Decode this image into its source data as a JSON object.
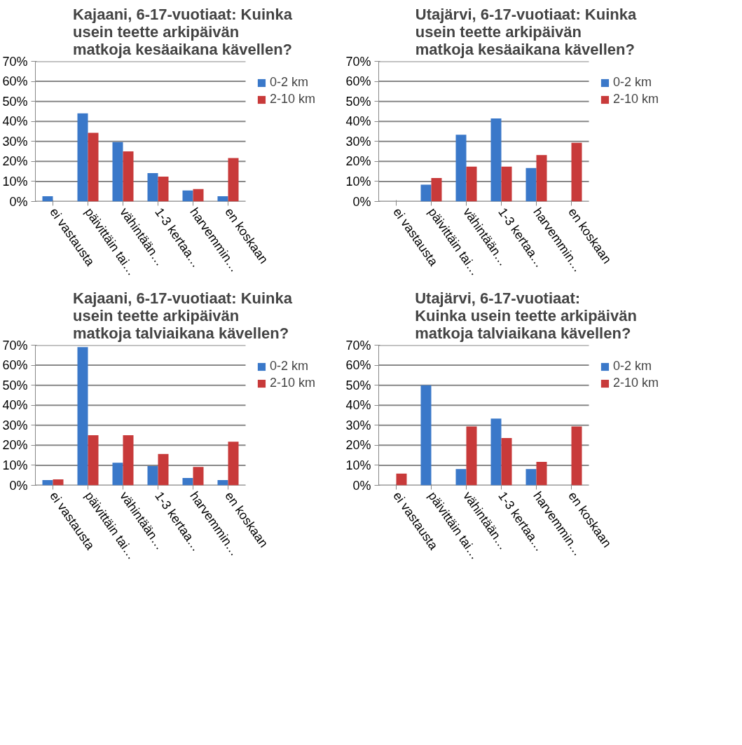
{
  "chart_data": [
    {
      "type": "bar",
      "title": "Kajaani, 6-17-vuotiaat: Kuinka\nusein teette arkipäivän\nmatkoja kesäaikana kävellen?",
      "categories": [
        "ei vastausta",
        "päivittäin tai…",
        "vähintään…",
        "1-3 kertaa…",
        "harvemmin…",
        "en koskaan"
      ],
      "series": [
        {
          "name": "0-2 km",
          "color": "#3a78c9",
          "values": [
            2.6,
            44,
            29.7,
            14.2,
            5.5,
            2.6
          ]
        },
        {
          "name": "2-10 km",
          "color": "#c83a3a",
          "values": [
            0,
            34.3,
            25,
            12.4,
            6.2,
            21.7
          ]
        }
      ],
      "ylim": [
        0,
        70
      ],
      "yticks": [
        {
          "value": 0,
          "label": "0%"
        },
        {
          "value": 10,
          "label": "10%"
        },
        {
          "value": 20,
          "label": "20%"
        },
        {
          "value": 30,
          "label": "30%"
        },
        {
          "value": 40,
          "label": "40%"
        },
        {
          "value": 50,
          "label": "50%"
        },
        {
          "value": 60,
          "label": "60%"
        },
        {
          "value": 70,
          "label": "70%"
        }
      ],
      "grid": "y",
      "legend": "right"
    },
    {
      "type": "bar",
      "title": "Utajärvi, 6-17-vuotiaat: Kuinka\nusein teette arkipäivän\nmatkoja kesäaikana kävellen?",
      "categories": [
        "ei vastausta",
        "päivittäin tai…",
        "vähintään…",
        "1-3 kertaa…",
        "harvemmin…",
        "en koskaan"
      ],
      "series": [
        {
          "name": "0-2 km",
          "color": "#3a78c9",
          "values": [
            0,
            8.4,
            33.3,
            41.5,
            16.7,
            0
          ]
        },
        {
          "name": "2-10 km",
          "color": "#c83a3a",
          "values": [
            0,
            11.7,
            17.4,
            17.4,
            23.2,
            29.3
          ]
        }
      ],
      "ylim": [
        0,
        70
      ],
      "yticks": [
        {
          "value": 0,
          "label": "0%"
        },
        {
          "value": 10,
          "label": "10%"
        },
        {
          "value": 20,
          "label": "20%"
        },
        {
          "value": 30,
          "label": "30%"
        },
        {
          "value": 40,
          "label": "40%"
        },
        {
          "value": 50,
          "label": "50%"
        },
        {
          "value": 60,
          "label": "60%"
        },
        {
          "value": 70,
          "label": "70%"
        }
      ],
      "grid": "y",
      "legend": "right"
    },
    {
      "type": "bar",
      "title": "Kajaani, 6-17-vuotiaat: Kuinka\nusein teette arkipäivän\nmatkoja talviaikana kävellen?",
      "categories": [
        "ei vastausta",
        "päivittäin tai…",
        "vähintään…",
        "1-3 kertaa…",
        "harvemmin…",
        "en koskaan"
      ],
      "series": [
        {
          "name": "0-2 km",
          "color": "#3a78c9",
          "values": [
            2.6,
            69,
            11.3,
            9.6,
            3.7,
            2.6
          ]
        },
        {
          "name": "2-10 km",
          "color": "#c83a3a",
          "values": [
            3,
            25,
            25,
            15.7,
            9.2,
            21.8
          ]
        }
      ],
      "ylim": [
        0,
        70
      ],
      "yticks": [
        {
          "value": 0,
          "label": "0%"
        },
        {
          "value": 10,
          "label": "10%"
        },
        {
          "value": 20,
          "label": "20%"
        },
        {
          "value": 30,
          "label": "30%"
        },
        {
          "value": 40,
          "label": "40%"
        },
        {
          "value": 50,
          "label": "50%"
        },
        {
          "value": 60,
          "label": "60%"
        },
        {
          "value": 70,
          "label": "70%"
        }
      ],
      "grid": "y",
      "legend": "right"
    },
    {
      "type": "bar",
      "title": "Utajärvi, 6-17-vuotiaat:\nKuinka usein teette arkipäivän\nmatkoja talviaikana kävellen?",
      "categories": [
        "ei vastausta",
        "päivittäin tai…",
        "vähintään…",
        "1-3 kertaa…",
        "harvemmin…",
        "en koskaan"
      ],
      "series": [
        {
          "name": "0-2 km",
          "color": "#3a78c9",
          "values": [
            0,
            50,
            8.1,
            33.3,
            8.1,
            0
          ]
        },
        {
          "name": "2-10 km",
          "color": "#c83a3a",
          "values": [
            5.9,
            0,
            29.4,
            23.6,
            11.7,
            29.4
          ]
        }
      ],
      "ylim": [
        0,
        70
      ],
      "yticks": [
        {
          "value": 0,
          "label": "0%"
        },
        {
          "value": 10,
          "label": "10%"
        },
        {
          "value": 20,
          "label": "20%"
        },
        {
          "value": 30,
          "label": "30%"
        },
        {
          "value": 40,
          "label": "40%"
        },
        {
          "value": 50,
          "label": "50%"
        },
        {
          "value": 60,
          "label": "60%"
        },
        {
          "value": 70,
          "label": "70%"
        }
      ],
      "grid": "y",
      "legend": "right"
    }
  ]
}
